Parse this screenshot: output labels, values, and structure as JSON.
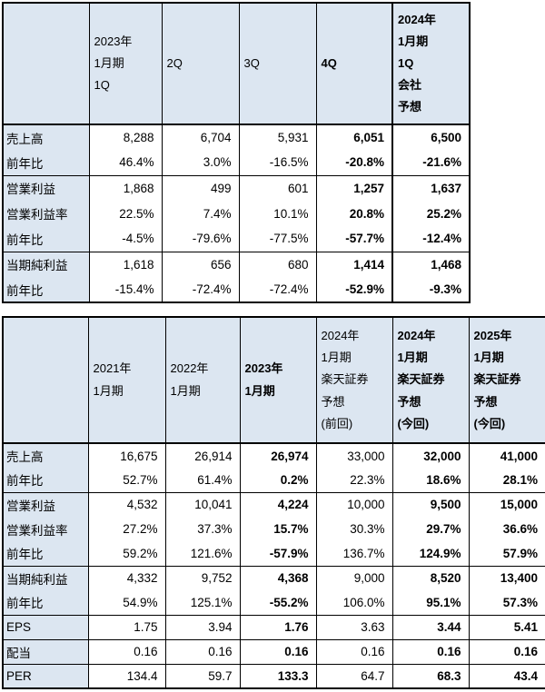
{
  "colors": {
    "header_bg": "#dce6f1",
    "border": "#000000",
    "text": "#000000",
    "cell_bg": "#ffffff"
  },
  "quarterly_table": {
    "columns": [
      {
        "label": "2023年\n1月期\n1Q",
        "bold": false,
        "thick_left": false
      },
      {
        "label": "2Q",
        "bold": false,
        "thick_left": false
      },
      {
        "label": "3Q",
        "bold": false,
        "thick_left": false
      },
      {
        "label": "4Q",
        "bold": true,
        "thick_left": false
      },
      {
        "label": "2024年\n1月期\n1Q\n会社\n予想",
        "bold": true,
        "thick_left": true
      }
    ],
    "rows": [
      {
        "label": "売上高",
        "group_start": true,
        "values": [
          "8,288",
          "6,704",
          "5,931",
          "6,051",
          "6,500"
        ]
      },
      {
        "label": "前年比",
        "group_start": false,
        "values": [
          "46.4%",
          "3.0%",
          "-16.5%",
          "-20.8%",
          "-21.6%"
        ]
      },
      {
        "label": "営業利益",
        "group_start": true,
        "values": [
          "1,868",
          "499",
          "601",
          "1,257",
          "1,637"
        ]
      },
      {
        "label": "営業利益率",
        "group_start": false,
        "values": [
          "22.5%",
          "7.4%",
          "10.1%",
          "20.8%",
          "25.2%"
        ]
      },
      {
        "label": "前年比",
        "group_start": false,
        "values": [
          "-4.5%",
          "-79.6%",
          "-77.5%",
          "-57.7%",
          "-12.4%"
        ]
      },
      {
        "label": "当期純利益",
        "group_start": true,
        "values": [
          "1,618",
          "656",
          "680",
          "1,414",
          "1,468"
        ]
      },
      {
        "label": "前年比",
        "group_start": false,
        "values": [
          "-15.4%",
          "-72.4%",
          "-72.4%",
          "-52.9%",
          "-9.3%"
        ]
      }
    ]
  },
  "annual_table": {
    "columns": [
      {
        "label": "2021年\n1月期",
        "bold": false,
        "thick_left": false
      },
      {
        "label": "2022年\n1月期",
        "bold": false,
        "thick_left": false
      },
      {
        "label": "2023年\n1月期",
        "bold": true,
        "thick_left": false
      },
      {
        "label": "2024年\n1月期\n楽天証券\n予想\n(前回)",
        "bold": false,
        "thick_left": false
      },
      {
        "label": "2024年\n1月期\n楽天証券\n予想\n(今回)",
        "bold": true,
        "thick_left": false
      },
      {
        "label": "2025年\n1月期\n楽天証券\n予想\n(今回)",
        "bold": true,
        "thick_left": false
      }
    ],
    "rows": [
      {
        "label": "売上高",
        "group_start": true,
        "values": [
          "16,675",
          "26,914",
          "26,974",
          "33,000",
          "32,000",
          "41,000"
        ]
      },
      {
        "label": "前年比",
        "group_start": false,
        "values": [
          "52.7%",
          "61.4%",
          "0.2%",
          "22.3%",
          "18.6%",
          "28.1%"
        ]
      },
      {
        "label": "営業利益",
        "group_start": true,
        "values": [
          "4,532",
          "10,041",
          "4,224",
          "10,000",
          "9,500",
          "15,000"
        ]
      },
      {
        "label": "営業利益率",
        "group_start": false,
        "values": [
          "27.2%",
          "37.3%",
          "15.7%",
          "30.3%",
          "29.7%",
          "36.6%"
        ]
      },
      {
        "label": "前年比",
        "group_start": false,
        "values": [
          "59.2%",
          "121.6%",
          "-57.9%",
          "136.7%",
          "124.9%",
          "57.9%"
        ]
      },
      {
        "label": "当期純利益",
        "group_start": true,
        "values": [
          "4,332",
          "9,752",
          "4,368",
          "9,000",
          "8,520",
          "13,400"
        ]
      },
      {
        "label": "前年比",
        "group_start": false,
        "values": [
          "54.9%",
          "125.1%",
          "-55.2%",
          "106.0%",
          "95.1%",
          "57.3%"
        ]
      },
      {
        "label": "EPS",
        "group_start": true,
        "values": [
          "1.75",
          "3.94",
          "1.76",
          "3.63",
          "3.44",
          "5.41"
        ]
      },
      {
        "label": "配当",
        "group_start": true,
        "values": [
          "0.16",
          "0.16",
          "0.16",
          "0.16",
          "0.16",
          "0.16"
        ]
      },
      {
        "label": "PER",
        "group_start": true,
        "values": [
          "134.4",
          "59.7",
          "133.3",
          "64.7",
          "68.3",
          "43.4"
        ]
      }
    ]
  }
}
